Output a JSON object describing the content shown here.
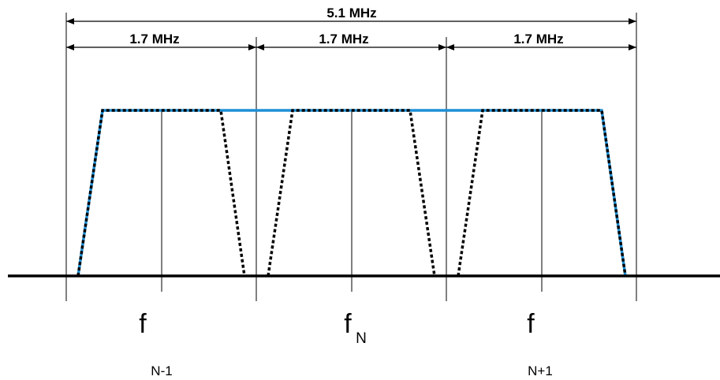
{
  "dimensions": {
    "total_label": "5.1 MHz",
    "channel_labels": [
      "1.7 MHz",
      "1.7 MHz",
      "1.7 MHz"
    ]
  },
  "frequency_labels": {
    "left": {
      "main": "f",
      "subscript": "N-1"
    },
    "center": {
      "main": "f",
      "subscript": "N"
    },
    "right": {
      "main": "f",
      "subscript": "N+1"
    }
  },
  "colors": {
    "envelope": "#1e90d6",
    "channel_dotted": "#000000",
    "lines": "#000000"
  }
}
